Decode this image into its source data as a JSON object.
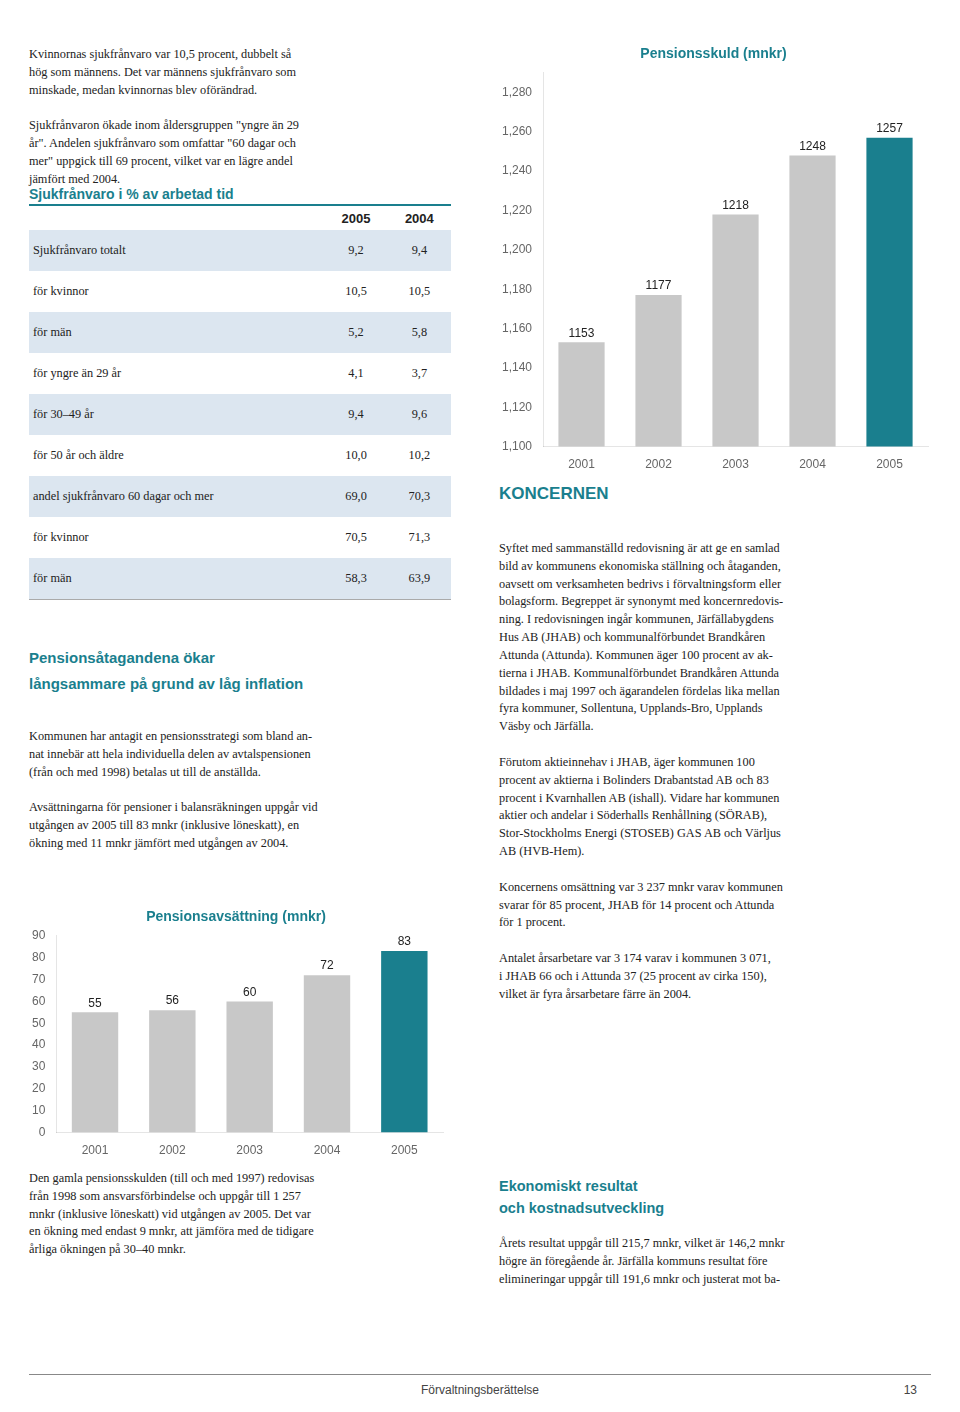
{
  "chart_data": [
    {
      "type": "bar",
      "title": "Pensionsskuld (mnkr)",
      "categories": [
        "2001",
        "2002",
        "2003",
        "2004",
        "2005"
      ],
      "values": [
        1153,
        1177,
        1218,
        1248,
        1257
      ],
      "colors": [
        "#c8c8c8",
        "#c8c8c8",
        "#c8c8c8",
        "#c8c8c8",
        "#1a7f8e"
      ],
      "ylim": [
        1100,
        1290
      ],
      "yticks": [
        1100,
        1120,
        1140,
        1160,
        1180,
        1200,
        1220,
        1240,
        1260,
        1280
      ],
      "grid": false,
      "data_labels": true
    },
    {
      "type": "bar",
      "title": "Pensionsavsättning (mnkr)",
      "categories": [
        "2001",
        "2002",
        "2003",
        "2004",
        "2005"
      ],
      "values": [
        55,
        56,
        60,
        72,
        83
      ],
      "colors": [
        "#c8c8c8",
        "#c8c8c8",
        "#c8c8c8",
        "#c8c8c8",
        "#1a7f8e"
      ],
      "ylim": [
        0,
        90
      ],
      "yticks": [
        0,
        10,
        20,
        30,
        40,
        50,
        60,
        70,
        80,
        90
      ],
      "grid": false,
      "data_labels": true
    }
  ],
  "texts": {
    "intro": "Kvinnornas sjukfrånvaro var 10,5 procent, dubbelt så\nhög som männens.  Det var männens sjukfrånvaro som\nminskade, medan kvinnornas blev oförändrad.\n\nSjukfrånvaron ökade inom åldersgruppen \"yngre än 29\når\". Andelen sjukfrånvaro som omfattar \"60 dagar och\nmer\" uppgick till 69 procent, vilket var en lägre andel\njämfört med 2004.",
    "pension_heading": "Pensionsåtagandena ökar\nlångsammare på grund av låg inflation",
    "pension_body": "Kommunen har antagit en pensionsstrategi som bland an-\nnat innebär att hela individuella delen av avtalspensionen\n(från och med 1998) betalas ut till de anställda.\n\nAvsättningarna för pensioner i balansräkningen uppgår vid\nutgången av 2005 till 83 mnkr (inklusive löneskatt), en\nökning med 11 mnkr jämfört med utgången av 2004.",
    "pension_body_2": "Den gamla pensionsskulden (till och med 1997) redovisas\nfrån 1998 som ansvarsförbindelse och uppgår till 1 257\nmnkr (inklusive löneskatt) vid utgången av 2005. Det var\nen ökning med endast 9 mnkr, att jämföra med de tidigare\nårliga ökningen på 30–40 mnkr.",
    "koncernen_heading": "KONCERNEN",
    "koncernen_body": "Syftet med sammanställd redovisning är att ge en samlad\nbild av kommunens ekonomiska ställning och åtaganden,\noavsett om verksamheten bedrivs i förvaltningsform eller\nbolagsform. Begreppet är synonymt med koncernredovis-\nning. I redovisningen ingår kommunen, Järfällabygdens\nHus AB (JHAB) och kommunalförbundet Brandkåren\nAttunda (Attunda). Kommunen äger 100 procent av ak-\ntierna i JHAB. Kommunalförbundet Brandkåren Attunda\nbildades i maj 1997 och ägarandelen fördelas lika mellan\nfyra kommuner, Sollentuna, Upplands-Bro, Upplands\nVäsby och Järfälla.\n\nFörutom aktieinnehav i JHAB, äger kommunen 100\nprocent av aktierna i Bolinders Drabantstad AB och 83\nprocent i Kvarnhallen AB (ishall). Vidare har kommunen\naktier och andelar i Söderhalls Renhållning (SÖRAB),\nStor-Stockholms Energi (STOSEB) GAS AB och Värljus\nAB (HVB-Hem).\n\nKoncernens omsättning var 3 237 mnkr varav kommunen\nsvarar för 85 procent, JHAB för 14 procent och Attunda\nför 1 procent.\n\nAntalet årsarbetare var 3 174 varav i kommunen 3 071,\ni JHAB 66 och i Attunda 37 (25 procent av cirka 150),\nvilket är fyra årsarbetare färre än 2004.",
    "ekonomi_heading": "Ekonomiskt resultat\noch kostnadsutveckling",
    "ekonomi_body": "Årets resultat uppgår till 215,7 mnkr, vilket är 146,2 mnkr\nhögre än föregående år. Järfälla kommuns resultat före\nelimineringar uppgår till 191,6 mnkr och justerat mot ba-",
    "footer": "Förvaltningsberättelse",
    "page_number": "13"
  },
  "table": {
    "title": "Sjukfrånvaro i % av arbetad tid",
    "columns": [
      "2005",
      "2004"
    ],
    "rows": [
      [
        "Sjukfrånvaro totalt",
        "9,2",
        "9,4"
      ],
      [
        "för kvinnor",
        "10,5",
        "10,5"
      ],
      [
        "för män",
        "5,2",
        "5,8"
      ],
      [
        "för yngre än 29 år",
        "4,1",
        "3,7"
      ],
      [
        "för 30–49 år",
        "9,4",
        "9,6"
      ],
      [
        "för 50 år och äldre",
        "10,0",
        "10,2"
      ],
      [
        "andel sjukfrånvaro 60 dagar och mer",
        "69,0",
        "70,3"
      ],
      [
        "för kvinnor",
        "70,5",
        "71,3"
      ],
      [
        "för män",
        "58,3",
        "63,9"
      ]
    ]
  }
}
